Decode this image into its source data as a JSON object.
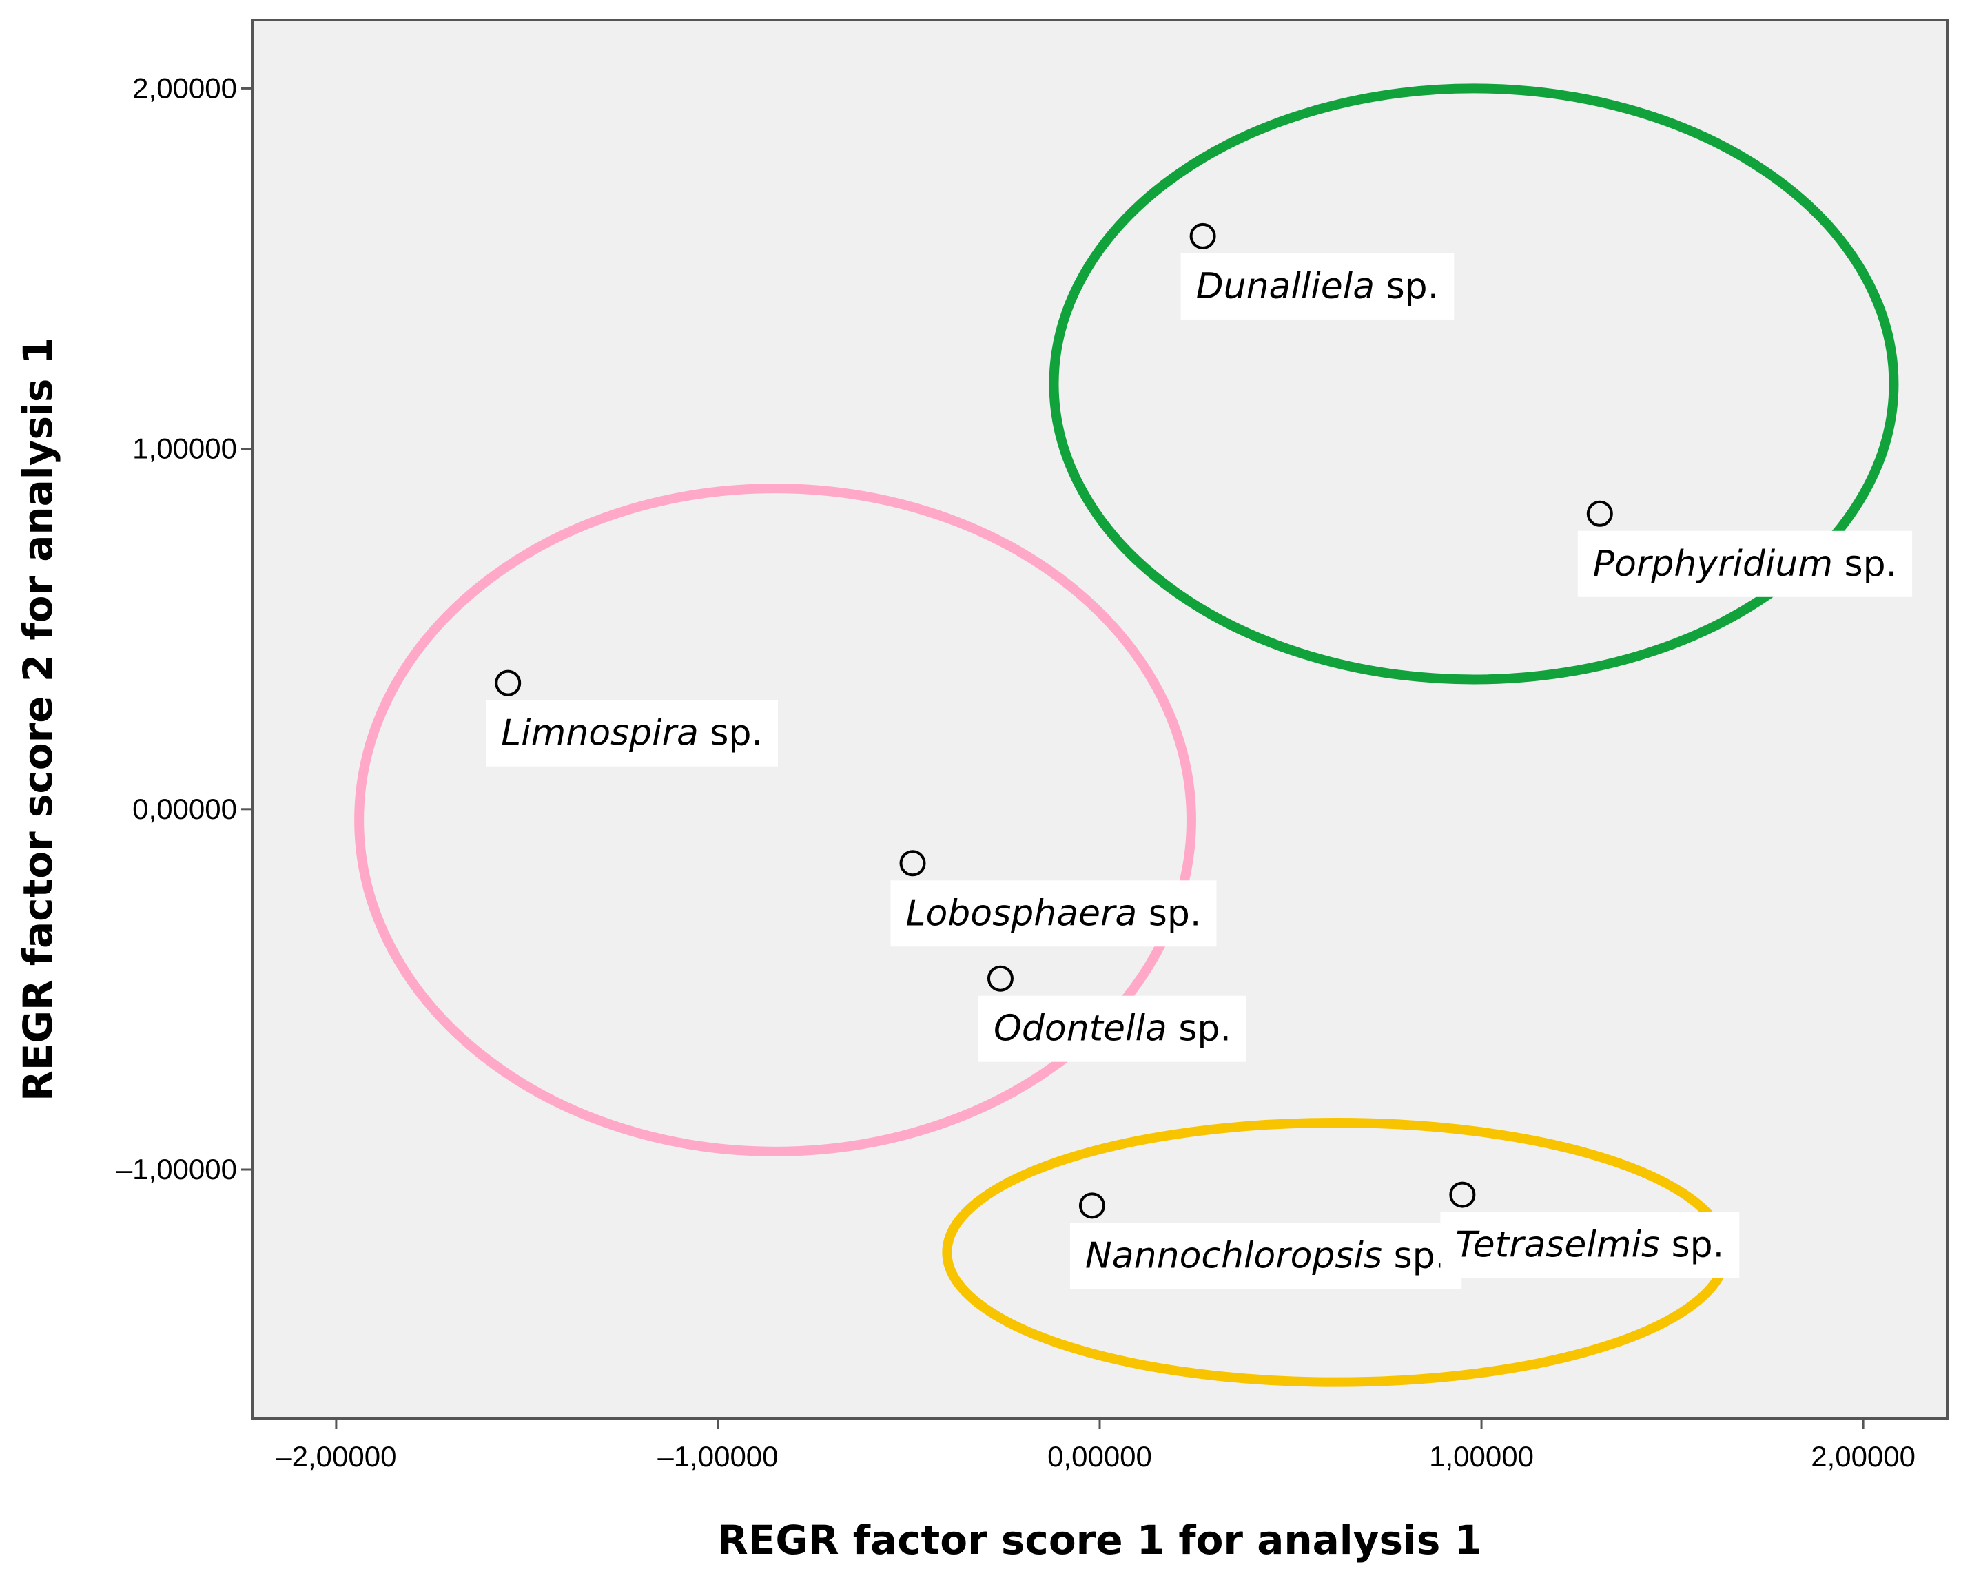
{
  "chart_data": {
    "type": "scatter",
    "xlabel": "REGR factor score   1 for analysis 1",
    "ylabel": "REGR factor score   2 for analysis 1",
    "xlim": [
      -2.22,
      2.22
    ],
    "ylim": [
      -1.69,
      2.19
    ],
    "x_ticks": [
      -2,
      -1,
      0,
      1,
      2
    ],
    "x_tick_labels": [
      "–2,00000",
      "–1,00000",
      "0,00000",
      "1,00000",
      "2,00000"
    ],
    "y_ticks": [
      -1,
      0,
      1,
      2
    ],
    "y_tick_labels": [
      "–1,00000",
      "0,00000",
      "1,00000",
      "2,00000"
    ],
    "grid": false,
    "points": [
      {
        "genus": "Dunalliela",
        "suffix": " sp.",
        "x": 0.27,
        "y": 1.59
      },
      {
        "genus": "Porphyridium",
        "suffix": " sp.",
        "x": 1.31,
        "y": 0.82
      },
      {
        "genus": "Limnospira",
        "suffix": " sp.",
        "x": -1.55,
        "y": 0.35
      },
      {
        "genus": "Lobosphaera",
        "suffix": " sp.",
        "x": -0.49,
        "y": -0.15
      },
      {
        "genus": "Odontella",
        "suffix": " sp.",
        "x": -0.26,
        "y": -0.47
      },
      {
        "genus": "Nannochloropsis",
        "suffix": " sp.",
        "x": -0.02,
        "y": -1.1
      },
      {
        "genus": "Tetraselmis",
        "suffix": " sp.",
        "x": 0.95,
        "y": -1.07
      }
    ],
    "clusters": [
      {
        "color": "#ffa8c8",
        "cx": -0.85,
        "cy": -0.03,
        "rx": 1.09,
        "ry": 0.92
      },
      {
        "color": "#12a23c",
        "cx": 0.98,
        "cy": 1.18,
        "rx": 1.1,
        "ry": 0.82
      },
      {
        "color": "#f8c400",
        "cx": 0.62,
        "cy": -1.23,
        "rx": 1.02,
        "ry": 0.36
      }
    ],
    "colors": {
      "plot_background": "#f0f0f0",
      "frame": "#555555"
    }
  }
}
